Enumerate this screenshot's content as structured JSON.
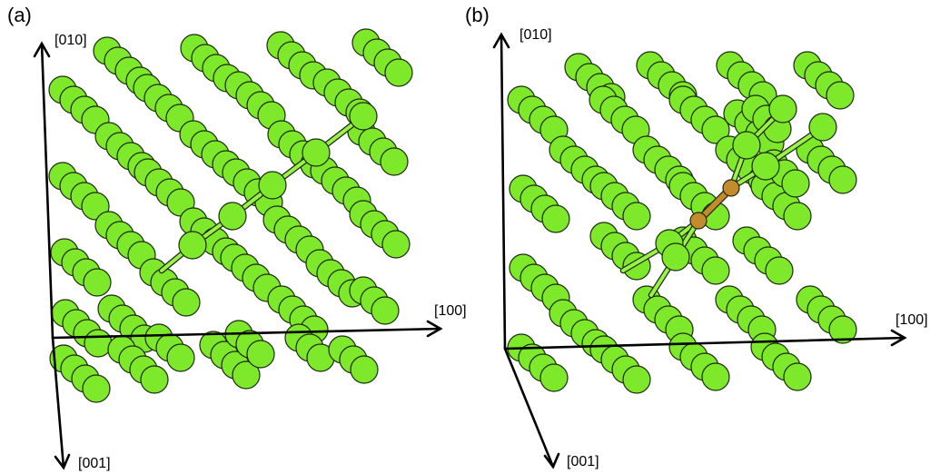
{
  "panels": [
    {
      "id": "a",
      "label": "(a)",
      "axes": {
        "y_up": "[010]",
        "x_right": "[100]",
        "z_down": "[001]"
      }
    },
    {
      "id": "b",
      "label": "(b)",
      "axes": {
        "y_up": "[010]",
        "x_right": "[100]",
        "z_down": "[001]"
      }
    }
  ],
  "colors": {
    "atom_fill": "#7ee82a",
    "atom_stroke": "#1c2a0c",
    "defect_fill": "#c48a2e",
    "defect_bond": "#a86a1e",
    "bond_fill": "#9cf04a",
    "axis": "#000000"
  }
}
